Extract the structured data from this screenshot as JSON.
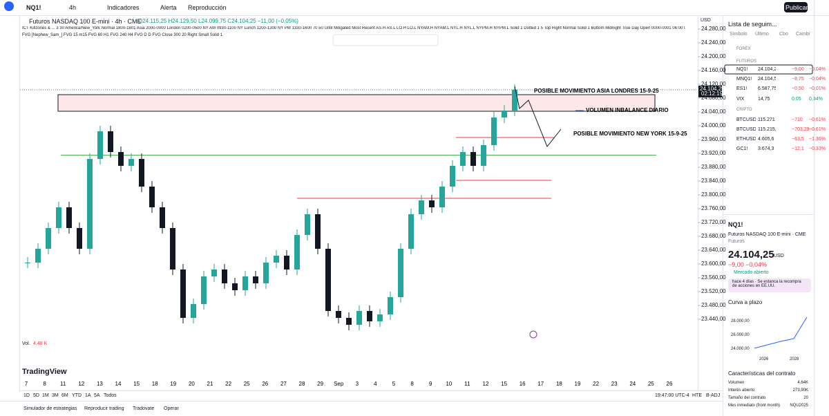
{
  "topbar": {
    "symbol": "NQ1!",
    "interval": "4h",
    "indicators": "Indicadores",
    "alert": "Alerta",
    "replay": "Reproducción",
    "publish": "Publicar"
  },
  "legend": {
    "title": "Futuros NASDAQ 100 E-mini · 4h · CME",
    "ohlc": "O24.115,25 H24.129,50 L24.099,75 C24.104,25 −11,00 (−0,05%)",
    "indicator1": "ICT Killzones & ... 3 30 America/New_York Normal 1800-1801 Asia 2000-0000 London 0200-0500 NY AM 0930-1100 NY Lunch 1200-1300 NY PM 1330-1600 70 50 Until Mitigated Most Recent AS.H AS.L LO.H LO.L NYAM.H NYAM.L NYL.H NYL.L NYPM.H NYPM.L Solid 1 Dotted 1 5 Top Right Normal Solid 1 Bottom Midnight True Day Open 0000-0001 06:00 0",
    "indicator2": "FVG [Nephew_Sam_] FVG 15 m15 FVG 60 H1 FVG 240 H4 FVG D D FVG Close 300 20 Right Small Solid 1",
    "volume": "Vol.",
    "volume_value": "4,48 K",
    "logo": "TradingView",
    "currency": "USD"
  },
  "chart_data": {
    "type": "candlestick",
    "closes": [
      23604,
      23644,
      23704,
      23764,
      23704,
      23644,
      23904,
      23984,
      23924,
      23884,
      23904,
      23824,
      23764,
      23704,
      23584,
      23444,
      23484,
      23564,
      23584,
      23544,
      23524,
      23564,
      23544,
      23604,
      23624,
      23584,
      23684,
      23744,
      23644,
      23464,
      23444,
      23424,
      23464,
      23434,
      23454,
      23504,
      23644,
      23744,
      23784,
      23764,
      23824,
      23884,
      23924,
      23884,
      23944,
      24024,
      24044,
      24104.25
    ],
    "ylim": [
      23384,
      24304
    ],
    "yticks": [
      {
        "value": 24280,
        "label": "24.280,00"
      },
      {
        "value": 24240,
        "label": "24.240,00"
      },
      {
        "value": 24200,
        "label": "24.200,00"
      },
      {
        "value": 24160,
        "label": "24.160,00"
      },
      {
        "value": 24120,
        "label": "24.120,00"
      },
      {
        "value": 24080,
        "label": "24.080,00"
      },
      {
        "value": 24040,
        "label": "24.040,00"
      },
      {
        "value": 24000,
        "label": "24.000,00"
      },
      {
        "value": 23960,
        "label": "23.960,00"
      },
      {
        "value": 23920,
        "label": "23.920,00"
      },
      {
        "value": 23880,
        "label": "23.880,00"
      },
      {
        "value": 23840,
        "label": "23.840,00"
      },
      {
        "value": 23800,
        "label": "23.800,00"
      },
      {
        "value": 23760,
        "label": "23.760,00"
      },
      {
        "value": 23720,
        "label": "23.720,00"
      },
      {
        "value": 23680,
        "label": "23.680,00"
      },
      {
        "value": 23640,
        "label": "23.640,00"
      },
      {
        "value": 23600,
        "label": "23.600,00"
      },
      {
        "value": 23560,
        "label": "23.560,00"
      },
      {
        "value": 23520,
        "label": "23.520,00"
      },
      {
        "value": 23480,
        "label": "23.480,00"
      },
      {
        "value": 23440,
        "label": "23.440,00"
      }
    ],
    "last_price": {
      "value": 24104.25,
      "label": "24.104,25"
    },
    "countdown": "02:12:19",
    "green_level": 23915,
    "red_levels": [
      23966,
      23842,
      23790
    ],
    "zone": [
      24042,
      24090
    ],
    "annotations": [
      "POSIBLE MOVIMIENTO ASIA LONDRES 15-9-25",
      "VOLUMEN INBALANCE DIARIO",
      "POSIBLE MOVIMIENTO NEW YORK 15-9-25"
    ],
    "dates": [
      "7",
      "8",
      "11",
      "12",
      "13",
      "14",
      "15",
      "18",
      "19",
      "20",
      "21",
      "22",
      "25",
      "26",
      "27",
      "28",
      "29",
      "Sep",
      "3",
      "4",
      "5",
      "8",
      "9",
      "10",
      "11",
      "12",
      "15",
      "16",
      "17",
      "18",
      "19",
      "22",
      "23",
      "24",
      "25",
      "26"
    ]
  },
  "watchlist": {
    "title": "Lista de seguim...",
    "columns": [
      "Símbolo",
      "Último",
      "Cbo",
      "Cambi"
    ],
    "groups": [
      "FOREX",
      "FUTUROS",
      "CRIPTO"
    ],
    "rows": [
      [
        "NQ1!",
        "24.104,25",
        "−9,00",
        "−0,04%"
      ],
      [
        "MNQ1!",
        "24.104,50",
        "−8,75",
        "−0,04%"
      ],
      [
        "ES1!",
        "6.587,75",
        "−0,50",
        "−0,01%"
      ],
      [
        "VIX",
        "14,75",
        "0,05",
        "0,34%"
      ],
      [
        "BTCUSD",
        "115.271",
        "−710",
        "−0,61%"
      ],
      [
        "BTCUSDT",
        "115.215,4",
        "−703,29",
        "−0,61%"
      ],
      [
        "ETHUSD",
        "4.605,6",
        "−63,5",
        "−1,36%"
      ],
      [
        "GC1!",
        "3.674,3",
        "−12,1",
        "−0,33%"
      ]
    ]
  },
  "details": {
    "symbol": "NQ1!",
    "name": "Futuros NASDAQ 100 E-mini · CME",
    "kind": "Futuros",
    "price": "24.104,25",
    "currency": "USD",
    "change": "−9,00 −0,04%",
    "status": "Mercado abierto",
    "news": "hace 4 días · Se estanca la recompra de acciones en EE.UU.",
    "curve_title": "Curva a plazo",
    "curve": {
      "values": [
        24200,
        24700,
        25200,
        25600,
        28700
      ],
      "ylim": [
        23100,
        29100
      ],
      "yticks": [
        {
          "value": 28000,
          "label": "28.000,00"
        },
        {
          "value": 26000,
          "label": "26.000,00"
        },
        {
          "value": 24000,
          "label": "24.000,00"
        }
      ],
      "xlabels": [
        "2026",
        "2028"
      ]
    },
    "contract_title": "Características del contrato",
    "specs": [
      [
        "Volumen",
        "4,64K"
      ],
      [
        "Interés abierto",
        "273,90K"
      ],
      [
        "Tamaño del contrato",
        "20"
      ],
      [
        "Mes inmediato (front month)",
        "NQU2025"
      ]
    ]
  },
  "bottombar": {
    "ranges": [
      "1D",
      "5D",
      "1M",
      "3M",
      "6M",
      "YTD",
      "1A",
      "5A",
      "Todos"
    ],
    "time": "19:47:00 UTC-4",
    "session": "HTE",
    "adj": "B-ADJ",
    "tabs": [
      "Simulador de estrategias",
      "Reproducir trading",
      "Tradovate",
      "Operar"
    ]
  }
}
